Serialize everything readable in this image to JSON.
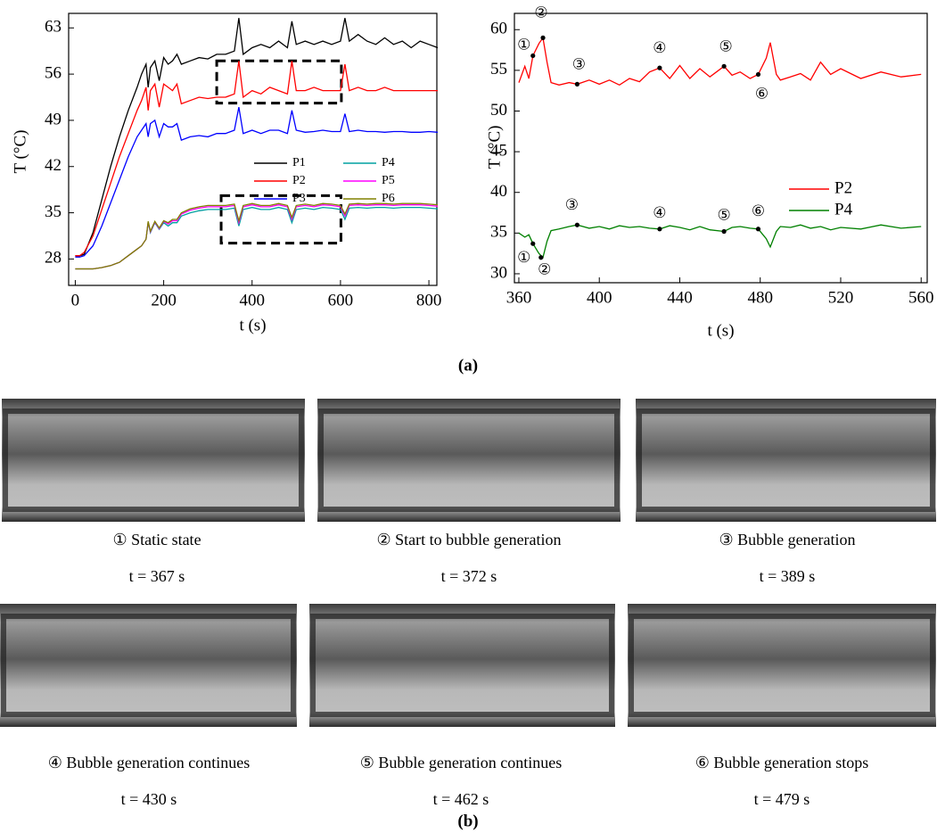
{
  "chart_data": [
    {
      "type": "line",
      "ylabel": "T (°C)",
      "xlabel": "t (s)",
      "xlim": [
        -15,
        818
      ],
      "ylim": [
        24,
        65.2
      ],
      "xticks": [
        0,
        200,
        400,
        600,
        800
      ],
      "yticks": [
        28,
        35,
        42,
        49,
        56,
        63
      ],
      "legend": "center-right",
      "x": [
        0,
        10,
        20,
        40,
        60,
        80,
        100,
        120,
        140,
        150,
        160,
        165,
        170,
        180,
        190,
        200,
        210,
        220,
        230,
        240,
        260,
        280,
        300,
        320,
        340,
        360,
        370,
        380,
        400,
        420,
        440,
        460,
        480,
        490,
        500,
        520,
        540,
        560,
        580,
        600,
        610,
        620,
        640,
        660,
        680,
        700,
        720,
        740,
        760,
        780,
        800,
        820
      ],
      "series": [
        {
          "name": "P1",
          "color": "#000000",
          "values": [
            28.5,
            28.5,
            28.7,
            32,
            37,
            42,
            46.5,
            50.5,
            54,
            56,
            57.5,
            54,
            57,
            58,
            55,
            58.5,
            57.5,
            58,
            59,
            57.5,
            58,
            58.5,
            58.3,
            59,
            59,
            59.5,
            64.5,
            59,
            60,
            60.5,
            60,
            61,
            60,
            64,
            60.5,
            61,
            60.5,
            61,
            60.5,
            61,
            64.5,
            61,
            62,
            61,
            60.5,
            61.5,
            60.5,
            61,
            60,
            61,
            60.5,
            60
          ]
        },
        {
          "name": "P2",
          "color": "#ff0000",
          "values": [
            28.5,
            28.5,
            29,
            31.5,
            35.5,
            39.5,
            43.5,
            47,
            50.5,
            52,
            54,
            50.5,
            53.5,
            54.5,
            51,
            54.5,
            54,
            53.5,
            54.5,
            51.5,
            52,
            52.5,
            52.3,
            52.5,
            52.5,
            53,
            58,
            52.5,
            53.5,
            53,
            54,
            53.5,
            53,
            58,
            53.5,
            53.5,
            54,
            53.5,
            53.5,
            53.5,
            57.5,
            53.5,
            54,
            53.5,
            53.5,
            54,
            53.5,
            53.5,
            53.5,
            53.5,
            53.5,
            53.5
          ]
        },
        {
          "name": "P3",
          "color": "#0000ff",
          "values": [
            28.3,
            28.3,
            28.5,
            30,
            33,
            36.5,
            40,
            43.5,
            46.5,
            47.5,
            48.5,
            46.5,
            48.5,
            49,
            46.5,
            48.5,
            48,
            48,
            48.5,
            46,
            46.5,
            46.7,
            46.5,
            47,
            47,
            47.5,
            51,
            47,
            47.5,
            47,
            47.5,
            47.5,
            47,
            50.5,
            47.5,
            47.2,
            47.3,
            47.5,
            47.3,
            47.3,
            50,
            47.3,
            47.5,
            47.3,
            47.3,
            47.2,
            47.3,
            47.3,
            47.2,
            47.2,
            47.3,
            47.2
          ]
        },
        {
          "name": "P4",
          "color": "#00a0a0",
          "values": [
            26.5,
            26.5,
            26.5,
            26.5,
            26.7,
            27,
            27.5,
            28.5,
            29.5,
            30,
            31,
            33.5,
            32,
            33.5,
            32.5,
            33.5,
            33,
            33.5,
            33.5,
            34.5,
            35,
            35.3,
            35.5,
            35.5,
            35.5,
            35.7,
            33,
            35.5,
            35.8,
            35.5,
            35.5,
            35.8,
            35.5,
            33.5,
            35.5,
            35.7,
            35.5,
            35.8,
            35.7,
            35.5,
            34,
            35.7,
            35.8,
            35.7,
            35.8,
            35.8,
            35.7,
            35.8,
            35.8,
            35.8,
            35.7,
            35.6
          ]
        },
        {
          "name": "P5",
          "color": "#ff00ff",
          "values": [
            26.5,
            26.5,
            26.5,
            26.5,
            26.7,
            27,
            27.5,
            28.5,
            29.5,
            30,
            31,
            33.6,
            32.1,
            33.6,
            32.6,
            33.7,
            33.3,
            33.8,
            33.8,
            34.8,
            35.4,
            35.7,
            35.9,
            35.9,
            35.9,
            36.1,
            33.5,
            35.9,
            36.2,
            35.9,
            35.9,
            36.2,
            35.9,
            34,
            35.9,
            36.1,
            35.9,
            36.2,
            36.1,
            35.9,
            34.5,
            36.1,
            36.2,
            36.1,
            36.2,
            36.2,
            36.1,
            36.2,
            36.2,
            36.2,
            36.1,
            36
          ]
        },
        {
          "name": "P6",
          "color": "#808000",
          "values": [
            26.5,
            26.5,
            26.5,
            26.5,
            26.7,
            27,
            27.5,
            28.5,
            29.5,
            30,
            31,
            33.7,
            32.2,
            33.7,
            32.7,
            33.8,
            33.5,
            34,
            34,
            35,
            35.6,
            35.9,
            36.1,
            36.1,
            36.1,
            36.3,
            33.8,
            36.1,
            36.4,
            36.1,
            36.1,
            36.4,
            36.1,
            34.3,
            36.1,
            36.3,
            36.1,
            36.4,
            36.3,
            36.1,
            34.8,
            36.3,
            36.4,
            36.3,
            36.4,
            36.4,
            36.3,
            36.4,
            36.4,
            36.4,
            36.3,
            36.2
          ]
        }
      ],
      "highlight_boxes": [
        {
          "xlim": [
            320,
            602
          ],
          "ylim": [
            51.6,
            58
          ]
        },
        {
          "xlim": [
            330,
            601
          ],
          "ylim": [
            30.4,
            37.6
          ]
        }
      ]
    },
    {
      "type": "line",
      "ylabel": "T (°C)",
      "xlabel": "t (s)",
      "xlim": [
        357.8,
        563
      ],
      "ylim": [
        28.9,
        62
      ],
      "xticks": [
        360,
        400,
        440,
        480,
        520,
        560
      ],
      "yticks": [
        30,
        35,
        40,
        45,
        50,
        55,
        60
      ],
      "legend": "center-right",
      "x": [
        360,
        363,
        365,
        367,
        370,
        372,
        374,
        376,
        380,
        385,
        389,
        395,
        400,
        405,
        410,
        415,
        420,
        425,
        430,
        435,
        440,
        445,
        450,
        455,
        462,
        466,
        470,
        475,
        479,
        483,
        485,
        488,
        490,
        495,
        500,
        505,
        510,
        515,
        520,
        530,
        540,
        550,
        560
      ],
      "series": [
        {
          "name": "P2",
          "color": "#ff0000",
          "values": [
            53.5,
            55.5,
            54,
            56.8,
            58.3,
            59,
            56,
            53.5,
            53.2,
            53.5,
            53.3,
            53.8,
            53.3,
            53.8,
            53.2,
            54,
            53.6,
            54.8,
            55.3,
            54,
            55.6,
            54,
            55.2,
            54.2,
            55.5,
            54.4,
            54.8,
            54,
            54.5,
            56.5,
            58.4,
            54.5,
            53.8,
            54.2,
            54.6,
            53.8,
            56,
            54.5,
            55.2,
            54,
            54.8,
            54.2,
            54.5
          ]
        },
        {
          "name": "P4",
          "color": "#008000",
          "values": [
            35,
            34.5,
            34.8,
            33.7,
            32.5,
            32,
            34,
            35.3,
            35.5,
            35.8,
            36,
            35.6,
            35.8,
            35.5,
            35.9,
            35.7,
            35.8,
            35.6,
            35.5,
            35.9,
            35.7,
            35.4,
            35.8,
            35.4,
            35.2,
            35.7,
            35.8,
            35.6,
            35.5,
            34.3,
            33.3,
            35.2,
            35.8,
            35.7,
            36,
            35.6,
            35.8,
            35.4,
            35.7,
            35.5,
            36,
            35.6,
            35.8
          ]
        }
      ],
      "annotations": [
        {
          "text": "①",
          "x": 367,
          "y": 56.8
        },
        {
          "text": "②",
          "x": 372,
          "y": 59
        },
        {
          "text": "③",
          "x": 389,
          "y": 53.3
        },
        {
          "text": "④",
          "x": 430,
          "y": 55.3
        },
        {
          "text": "⑤",
          "x": 462,
          "y": 55.5
        },
        {
          "text": "⑥",
          "x": 479,
          "y": 54.5
        },
        {
          "text": "①",
          "x": 367,
          "y": 33.7
        },
        {
          "text": "②",
          "x": 371,
          "y": 32
        },
        {
          "text": "③",
          "x": 389,
          "y": 36
        },
        {
          "text": "④",
          "x": 430,
          "y": 35.5
        },
        {
          "text": "⑤",
          "x": 462,
          "y": 35.2
        },
        {
          "text": "⑥",
          "x": 479,
          "y": 35.5
        }
      ]
    }
  ],
  "panel_labels": [
    "(a)",
    "(b)"
  ],
  "photos": [
    {
      "caption": "① Static state",
      "time": "t = 367 s"
    },
    {
      "caption": "② Start to bubble generation",
      "time": "t = 372 s"
    },
    {
      "caption": "③ Bubble generation",
      "time": "t = 389 s"
    },
    {
      "caption": "④ Bubble generation continues",
      "time": "t = 430 s"
    },
    {
      "caption": "⑤ Bubble generation continues",
      "time": "t = 462 s"
    },
    {
      "caption": "⑥ Bubble generation stops",
      "time": "t = 479 s"
    }
  ]
}
